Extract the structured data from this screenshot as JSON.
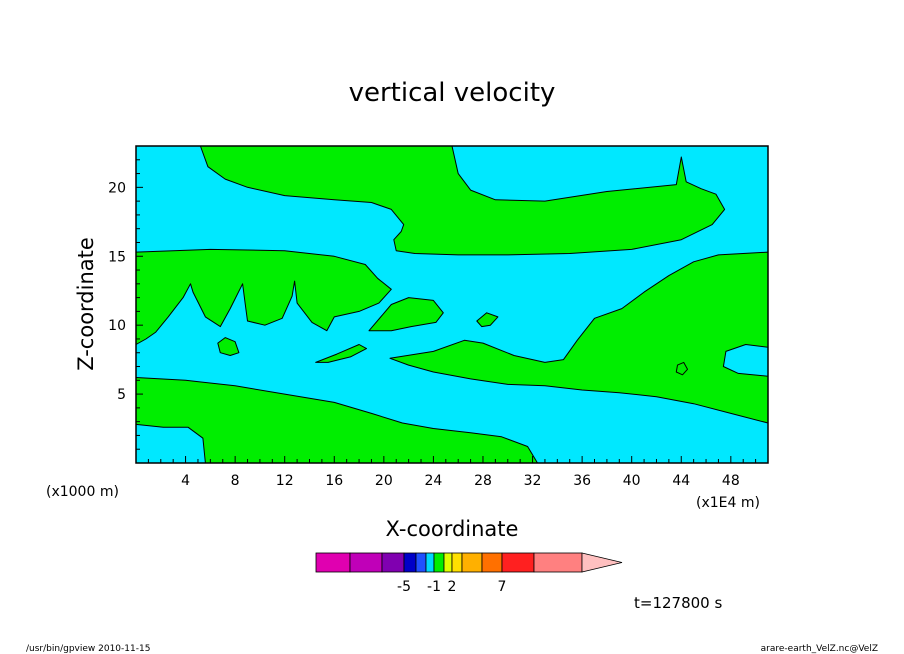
{
  "chart_data": {
    "type": "heatmap",
    "title": "vertical velocity",
    "xlabel": "X-coordinate",
    "ylabel": "Z-coordinate",
    "x_unit": "(x1E4 m)",
    "y_unit": "(x1000 m)",
    "xlim": [
      0,
      51
    ],
    "ylim": [
      0,
      23
    ],
    "x_ticks": [
      4,
      8,
      12,
      16,
      20,
      24,
      28,
      32,
      36,
      40,
      44,
      48
    ],
    "y_ticks": [
      5,
      10,
      15,
      20
    ],
    "x_tick_labels": [
      "4",
      "8",
      "12",
      "16",
      "20",
      "24",
      "28",
      "32",
      "36",
      "40",
      "44",
      "48"
    ],
    "y_tick_labels": [
      "5",
      "10",
      "15",
      "20"
    ],
    "background_color": "#00e8ff",
    "region_color": "#00ee00",
    "regions": [
      [
        [
          5.2,
          23
        ],
        [
          5.8,
          21.5
        ],
        [
          7.2,
          20.6
        ],
        [
          9,
          20
        ],
        [
          12,
          19.4
        ],
        [
          16,
          19.1
        ],
        [
          19,
          18.9
        ],
        [
          20.6,
          18.4
        ],
        [
          21.6,
          17.3
        ],
        [
          21.4,
          16.8
        ],
        [
          20.8,
          16.2
        ],
        [
          21.0,
          15.4
        ],
        [
          22.5,
          15.2
        ],
        [
          26,
          15.1
        ],
        [
          30,
          15.1
        ],
        [
          35,
          15.2
        ],
        [
          40,
          15.5
        ],
        [
          44,
          16.2
        ],
        [
          46.5,
          17.3
        ],
        [
          47.5,
          18.4
        ],
        [
          46.8,
          19.5
        ],
        [
          45.6,
          19.9
        ],
        [
          44.4,
          20.4
        ],
        [
          44,
          22.2
        ],
        [
          43.6,
          20.2
        ],
        [
          38,
          19.7
        ],
        [
          33,
          19
        ],
        [
          29,
          19.1
        ],
        [
          27,
          19.8
        ],
        [
          26,
          21
        ],
        [
          25.5,
          23
        ]
      ],
      [
        [
          0,
          15.3
        ],
        [
          6,
          15.5
        ],
        [
          12,
          15.4
        ],
        [
          16,
          15
        ],
        [
          18.5,
          14.4
        ],
        [
          19.5,
          13.4
        ],
        [
          20.6,
          12.6
        ],
        [
          19.6,
          11.6
        ],
        [
          18,
          11
        ],
        [
          16,
          10.6
        ],
        [
          15.4,
          9.6
        ],
        [
          14.2,
          10.2
        ],
        [
          13,
          11.6
        ],
        [
          12.8,
          13.2
        ],
        [
          12.6,
          12.1
        ],
        [
          11.8,
          10.5
        ],
        [
          10.4,
          10
        ],
        [
          9,
          10.3
        ],
        [
          8.8,
          11.6
        ],
        [
          8.6,
          13
        ],
        [
          7.6,
          11.2
        ],
        [
          6.8,
          9.9
        ],
        [
          5.6,
          10.6
        ],
        [
          4.6,
          12.4
        ],
        [
          4.4,
          13
        ],
        [
          3.8,
          12
        ],
        [
          2.6,
          10.6
        ],
        [
          1.6,
          9.5
        ],
        [
          0.8,
          9
        ],
        [
          0,
          8.6
        ]
      ],
      [
        [
          0,
          6.2
        ],
        [
          4,
          6
        ],
        [
          8,
          5.6
        ],
        [
          12,
          5
        ],
        [
          16,
          4.4
        ],
        [
          19,
          3.6
        ],
        [
          21.5,
          2.9
        ],
        [
          24,
          2.5
        ],
        [
          27,
          2.2
        ],
        [
          29.5,
          1.9
        ],
        [
          31.6,
          1.2
        ],
        [
          32.4,
          0
        ],
        [
          5.6,
          0
        ],
        [
          5.4,
          1.8
        ],
        [
          4.2,
          2.6
        ],
        [
          2.2,
          2.6
        ],
        [
          0,
          2.8
        ]
      ],
      [
        [
          20.5,
          7.6
        ],
        [
          24,
          8.1
        ],
        [
          26.5,
          8.9
        ],
        [
          28,
          8.7
        ],
        [
          30.5,
          7.8
        ],
        [
          33,
          7.3
        ],
        [
          34.5,
          7.5
        ],
        [
          35.6,
          8.9
        ],
        [
          37,
          10.5
        ],
        [
          39.2,
          11.2
        ],
        [
          41,
          12.4
        ],
        [
          43,
          13.6
        ],
        [
          45,
          14.6
        ],
        [
          47,
          15.1
        ],
        [
          51,
          15.3
        ],
        [
          51,
          8.4
        ],
        [
          49.2,
          8.6
        ],
        [
          47.6,
          8.1
        ],
        [
          47.4,
          7
        ],
        [
          48.6,
          6.5
        ],
        [
          51,
          6.3
        ],
        [
          51,
          2.9
        ],
        [
          48,
          3.6
        ],
        [
          45,
          4.3
        ],
        [
          42,
          4.8
        ],
        [
          39,
          5.1
        ],
        [
          36,
          5.3
        ],
        [
          33,
          5.6
        ],
        [
          30,
          5.7
        ],
        [
          27,
          6.1
        ],
        [
          24,
          6.6
        ],
        [
          22,
          7.1
        ]
      ],
      [
        [
          18.8,
          9.6
        ],
        [
          20.6,
          11.5
        ],
        [
          22,
          12
        ],
        [
          24,
          11.8
        ],
        [
          24.8,
          10.9
        ],
        [
          24.2,
          10.2
        ],
        [
          22.2,
          9.9
        ],
        [
          20.6,
          9.6
        ]
      ],
      [
        [
          14.5,
          7.3
        ],
        [
          16.2,
          7.9
        ],
        [
          18,
          8.6
        ],
        [
          18.6,
          8.3
        ],
        [
          17.3,
          7.7
        ],
        [
          15.5,
          7.3
        ]
      ],
      [
        [
          6.6,
          8.7
        ],
        [
          7.2,
          9.1
        ],
        [
          8,
          8.8
        ],
        [
          8.3,
          8
        ],
        [
          7.6,
          7.8
        ],
        [
          6.8,
          8
        ]
      ],
      [
        [
          27.5,
          10.3
        ],
        [
          28.3,
          10.9
        ],
        [
          29.2,
          10.6
        ],
        [
          28.6,
          10
        ],
        [
          27.9,
          9.9
        ]
      ],
      [
        [
          43.7,
          7.1
        ],
        [
          44.2,
          7.3
        ],
        [
          44.5,
          6.8
        ],
        [
          44.1,
          6.4
        ],
        [
          43.6,
          6.6
        ]
      ]
    ],
    "colorbar": {
      "colors": [
        "#e000b0",
        "#c000b8",
        "#8000b0",
        "#0000c8",
        "#2050ff",
        "#00d8ff",
        "#00ee00",
        "#e0ff00",
        "#ffe000",
        "#ffb000",
        "#ff7000",
        "#ff2020",
        "#ff8080",
        "#ffc0c0"
      ],
      "labels": [
        "-5",
        "-1",
        "2",
        "7"
      ]
    },
    "time_label": "t=127800 s"
  },
  "footer": {
    "left": "/usr/bin/gpview   2010-11-15",
    "right": "arare-earth_VelZ.nc@VelZ"
  }
}
